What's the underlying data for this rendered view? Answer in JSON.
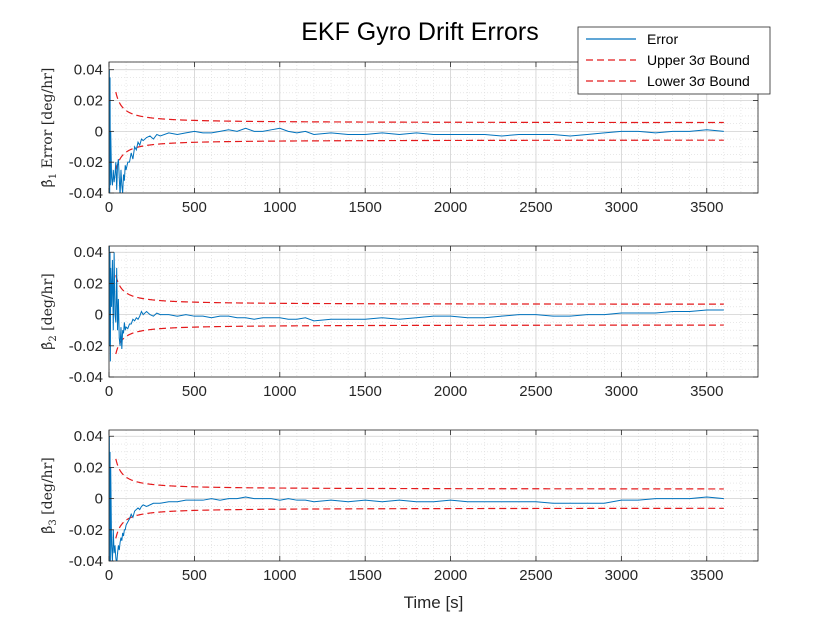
{
  "figure": {
    "title": "EKF Gyro Drift Errors"
  },
  "legend": {
    "entries": [
      {
        "label": "Error",
        "color": "#0072BD",
        "dash": "solid"
      },
      {
        "label": "Upper 3σ Bound",
        "color": "#E41A1C",
        "dash": "dashed"
      },
      {
        "label": "Lower 3σ Bound",
        "color": "#E41A1C",
        "dash": "dashed"
      }
    ],
    "placement": "top-right"
  },
  "chart_data": [
    {
      "type": "line",
      "ylabel_symbol": "β̂",
      "ylabel_sub": "1",
      "ylabel_rest": " Error [deg/hr]",
      "xlabel": "",
      "xlim": [
        0,
        3800
      ],
      "ylim": [
        -0.04,
        0.045
      ],
      "xticks": [
        0,
        500,
        1000,
        1500,
        2000,
        2500,
        3000,
        3500
      ],
      "xtick_labels": [
        "0",
        "500",
        "1000",
        "1500",
        "2000",
        "2500",
        "3000",
        "3500"
      ],
      "yticks": [
        -0.04,
        -0.02,
        0,
        0.02,
        0.04
      ],
      "ytick_labels": [
        "-0.04",
        "-0.02",
        "0",
        "0.02",
        "0.04"
      ],
      "grid": "minor-dotted",
      "bound_start": 40,
      "bound_end": 3600,
      "series": [
        {
          "name": "Error",
          "x": [
            0,
            2,
            4,
            6,
            8,
            10,
            15,
            20,
            25,
            30,
            35,
            40,
            45,
            50,
            55,
            60,
            65,
            70,
            75,
            80,
            85,
            90,
            95,
            100,
            110,
            120,
            130,
            140,
            150,
            160,
            170,
            180,
            190,
            200,
            220,
            240,
            260,
            280,
            300,
            350,
            400,
            450,
            500,
            550,
            600,
            650,
            700,
            750,
            800,
            850,
            900,
            950,
            1000,
            1050,
            1100,
            1150,
            1200,
            1300,
            1400,
            1500,
            1600,
            1700,
            1800,
            1900,
            2000,
            2100,
            2200,
            2300,
            2400,
            2500,
            2600,
            2700,
            2800,
            2900,
            3000,
            3100,
            3200,
            3300,
            3400,
            3500,
            3600
          ],
          "y": [
            0,
            0.04,
            -0.04,
            0.035,
            -0.035,
            0.0,
            -0.03,
            -0.035,
            -0.025,
            -0.033,
            -0.028,
            -0.02,
            -0.038,
            -0.022,
            -0.018,
            -0.03,
            -0.042,
            -0.025,
            -0.035,
            -0.04,
            -0.028,
            -0.032,
            -0.022,
            -0.025,
            -0.02,
            -0.02,
            -0.014,
            -0.018,
            -0.01,
            -0.012,
            -0.007,
            -0.009,
            -0.005,
            -0.006,
            -0.004,
            -0.003,
            -0.005,
            -0.002,
            -0.003,
            -0.001,
            -0.002,
            -0.001,
            0.0,
            -0.001,
            -0.001,
            0.0,
            0.001,
            0.0,
            0.002,
            0.0,
            0.0,
            0.001,
            0.002,
            0.0,
            -0.001,
            0.0,
            -0.002,
            -0.001,
            -0.002,
            -0.002,
            -0.001,
            -0.002,
            -0.001,
            -0.002,
            -0.002,
            -0.002,
            -0.002,
            -0.003,
            -0.002,
            -0.002,
            -0.002,
            -0.003,
            -0.002,
            -0.001,
            0.0,
            0.0,
            -0.001,
            0.0,
            0.0,
            0.001,
            0.0
          ]
        }
      ],
      "upper": {
        "name": "Upper 3σ Bound",
        "a": 0.0055,
        "b": 0.8
      },
      "lower": {
        "name": "Lower 3σ Bound",
        "a": -0.0055,
        "b": -0.8
      }
    },
    {
      "type": "line",
      "ylabel_symbol": "β̂",
      "ylabel_sub": "2",
      "ylabel_rest": " [deg/hr]",
      "xlabel": "",
      "xlim": [
        0,
        3800
      ],
      "ylim": [
        -0.04,
        0.044
      ],
      "xticks": [
        0,
        500,
        1000,
        1500,
        2000,
        2500,
        3000,
        3500
      ],
      "xtick_labels": [
        "0",
        "500",
        "1000",
        "1500",
        "2000",
        "2500",
        "3000",
        "3500"
      ],
      "yticks": [
        -0.04,
        -0.02,
        0,
        0.02,
        0.04
      ],
      "ytick_labels": [
        "-0.04",
        "-0.02",
        "0",
        "0.02",
        "0.04"
      ],
      "grid": "minor-dotted",
      "bound_start": 40,
      "bound_end": 3600,
      "series": [
        {
          "name": "Error",
          "x": [
            0,
            2,
            4,
            6,
            8,
            10,
            15,
            20,
            25,
            30,
            35,
            40,
            45,
            50,
            55,
            60,
            65,
            70,
            75,
            80,
            85,
            90,
            95,
            100,
            110,
            120,
            130,
            140,
            150,
            160,
            170,
            180,
            190,
            200,
            220,
            240,
            260,
            280,
            300,
            350,
            400,
            450,
            500,
            550,
            600,
            650,
            700,
            750,
            800,
            850,
            900,
            950,
            1000,
            1050,
            1100,
            1150,
            1200,
            1300,
            1400,
            1500,
            1600,
            1700,
            1800,
            1900,
            2000,
            2100,
            2200,
            2300,
            2400,
            2500,
            2600,
            2700,
            2800,
            2900,
            3000,
            3100,
            3200,
            3300,
            3400,
            3500,
            3600
          ],
          "y": [
            0,
            0.044,
            -0.02,
            0.04,
            -0.03,
            0.03,
            0.005,
            0.035,
            -0.01,
            0.04,
            0.0,
            -0.005,
            0.03,
            -0.01,
            0.01,
            -0.015,
            -0.02,
            -0.008,
            -0.022,
            -0.01,
            -0.012,
            -0.005,
            -0.01,
            -0.008,
            -0.009,
            -0.006,
            -0.006,
            -0.003,
            -0.004,
            -0.002,
            -0.003,
            -0.001,
            0.002,
            0.0,
            0.002,
            0.0,
            -0.001,
            0.001,
            0.0,
            0.0,
            -0.001,
            0.0,
            -0.001,
            -0.001,
            -0.002,
            -0.001,
            -0.001,
            -0.002,
            -0.002,
            -0.003,
            -0.002,
            -0.002,
            -0.002,
            -0.003,
            -0.003,
            -0.002,
            -0.004,
            -0.003,
            -0.003,
            -0.003,
            -0.002,
            -0.003,
            -0.002,
            -0.001,
            -0.001,
            -0.002,
            -0.002,
            -0.001,
            0.0,
            0.0,
            -0.001,
            -0.001,
            0.0,
            0.0,
            0.001,
            0.001,
            0.001,
            0.002,
            0.002,
            0.003,
            0.003
          ]
        }
      ],
      "upper": {
        "name": "Upper 3σ Bound",
        "a": 0.0065,
        "b": 0.75
      },
      "lower": {
        "name": "Lower 3σ Bound",
        "a": -0.0065,
        "b": -0.75
      }
    },
    {
      "type": "line",
      "ylabel_symbol": "β̂",
      "ylabel_sub": "3",
      "ylabel_rest": " [deg/hr]",
      "xlabel": "Time [s]",
      "xlim": [
        0,
        3800
      ],
      "ylim": [
        -0.04,
        0.044
      ],
      "xticks": [
        0,
        500,
        1000,
        1500,
        2000,
        2500,
        3000,
        3500
      ],
      "xtick_labels": [
        "0",
        "500",
        "1000",
        "1500",
        "2000",
        "2500",
        "3000",
        "3500"
      ],
      "yticks": [
        -0.04,
        -0.02,
        0,
        0.02,
        0.04
      ],
      "ytick_labels": [
        "-0.04",
        "-0.02",
        "0",
        "0.02",
        "0.04"
      ],
      "grid": "minor-dotted",
      "bound_start": 40,
      "bound_end": 3600,
      "series": [
        {
          "name": "Error",
          "x": [
            0,
            2,
            4,
            6,
            8,
            10,
            15,
            20,
            25,
            30,
            35,
            40,
            45,
            50,
            55,
            60,
            65,
            70,
            75,
            80,
            85,
            90,
            95,
            100,
            110,
            120,
            130,
            140,
            150,
            160,
            170,
            180,
            190,
            200,
            220,
            240,
            260,
            280,
            300,
            350,
            400,
            450,
            500,
            550,
            600,
            650,
            700,
            750,
            800,
            850,
            900,
            950,
            1000,
            1050,
            1100,
            1150,
            1200,
            1300,
            1400,
            1500,
            1600,
            1700,
            1800,
            1900,
            2000,
            2100,
            2200,
            2300,
            2400,
            2500,
            2600,
            2700,
            2800,
            2900,
            3000,
            3100,
            3200,
            3300,
            3400,
            3500,
            3600
          ],
          "y": [
            0,
            0.04,
            -0.04,
            0.03,
            -0.04,
            0.02,
            -0.03,
            -0.04,
            -0.02,
            -0.035,
            -0.03,
            -0.038,
            -0.042,
            -0.035,
            -0.03,
            -0.033,
            -0.028,
            -0.025,
            -0.027,
            -0.022,
            -0.024,
            -0.02,
            -0.02,
            -0.017,
            -0.015,
            -0.013,
            -0.01,
            -0.012,
            -0.008,
            -0.007,
            -0.006,
            -0.007,
            -0.005,
            -0.004,
            -0.005,
            -0.004,
            -0.003,
            -0.003,
            -0.003,
            -0.002,
            -0.002,
            -0.001,
            -0.001,
            -0.001,
            0.0,
            -0.001,
            0.0,
            0.0,
            0.001,
            0.0,
            0.0,
            0.0,
            -0.001,
            0.0,
            -0.001,
            -0.001,
            -0.002,
            -0.001,
            -0.002,
            -0.001,
            -0.002,
            -0.001,
            -0.002,
            -0.002,
            -0.001,
            -0.002,
            -0.002,
            -0.002,
            -0.002,
            -0.002,
            -0.003,
            -0.003,
            -0.003,
            -0.003,
            -0.001,
            -0.001,
            0.0,
            0.0,
            0.0,
            0.001,
            0.0
          ]
        }
      ],
      "upper": {
        "name": "Upper 3σ Bound",
        "a": 0.006,
        "b": 0.78
      },
      "lower": {
        "name": "Lower 3σ Bound",
        "a": -0.006,
        "b": -0.78
      }
    }
  ]
}
